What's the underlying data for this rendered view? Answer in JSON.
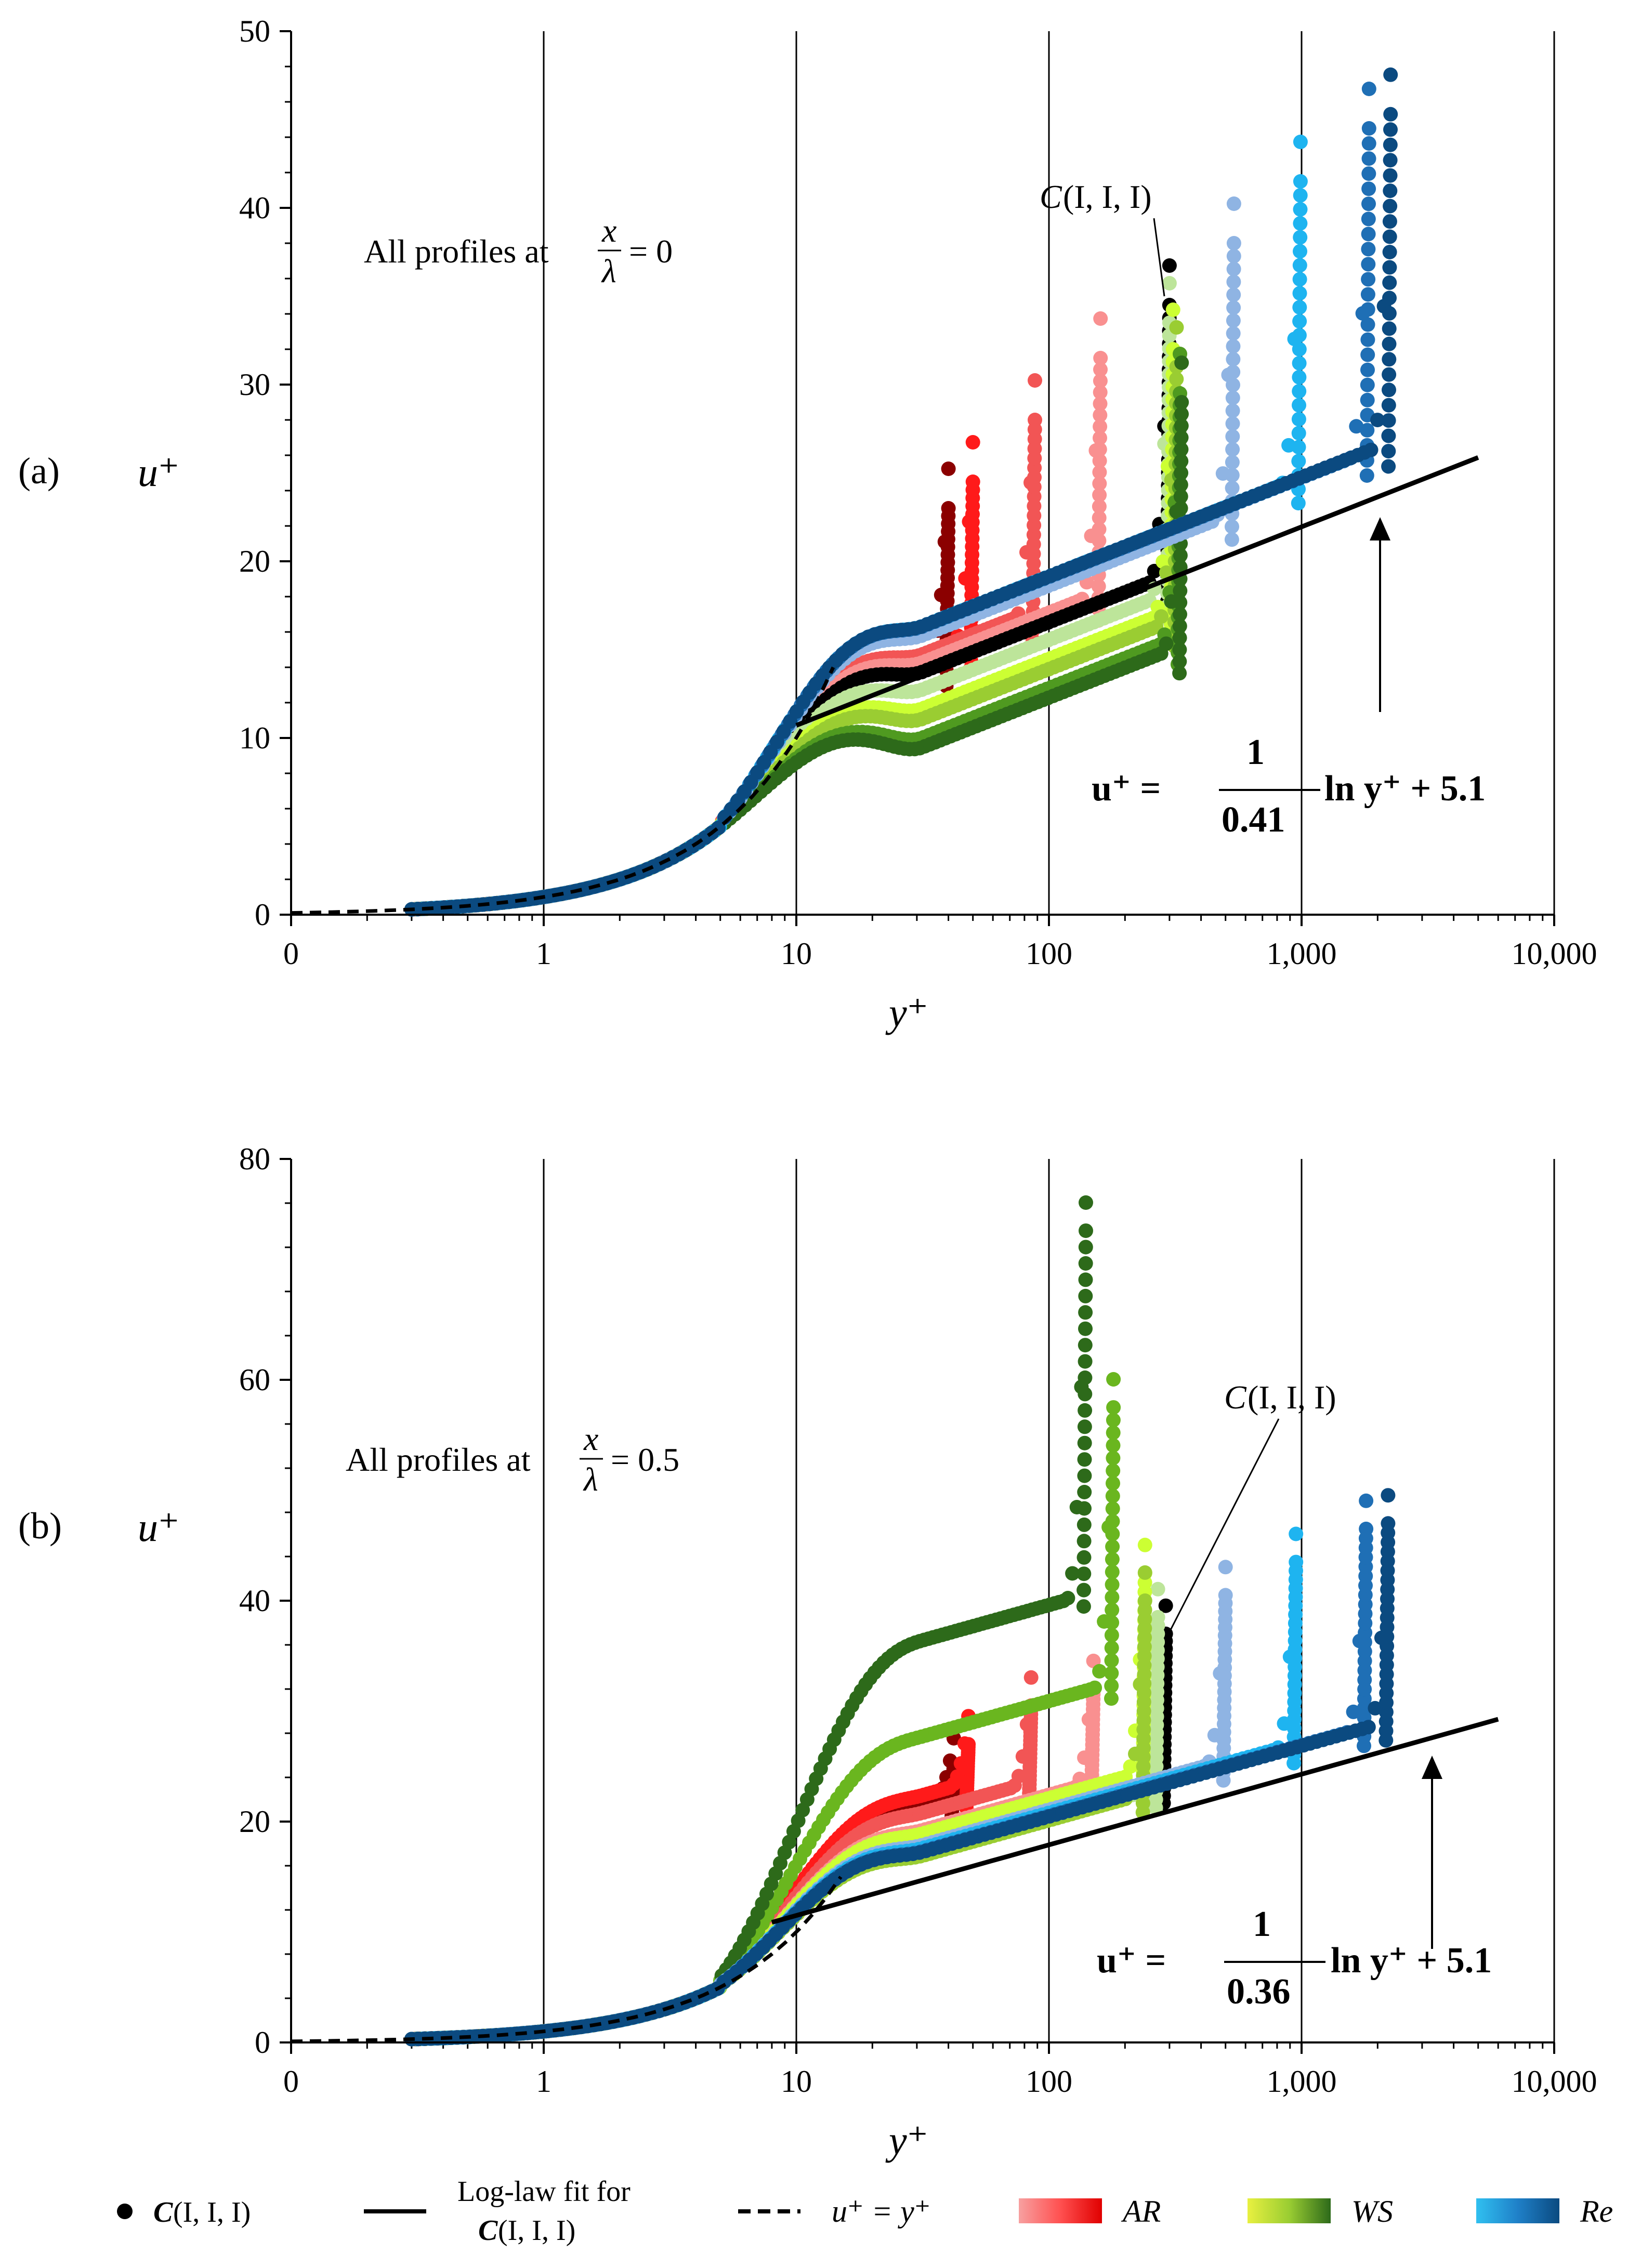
{
  "chart_data": [
    {
      "panel_label": "(a)",
      "type": "scatter",
      "x_scale": "log",
      "xlabel": "y⁺",
      "ylabel": "u⁺",
      "xlim": [
        0.1,
        10000
      ],
      "ylim": [
        0,
        50
      ],
      "x_tick_values": [
        0.1,
        1,
        10,
        100,
        1000,
        10000
      ],
      "x_tick_labels": [
        "0",
        "1",
        "10",
        "100",
        "1,000",
        "10,000"
      ],
      "y_tick_values": [
        0,
        10,
        20,
        30,
        40,
        50
      ],
      "y_tick_labels": [
        "0",
        "10",
        "20",
        "30",
        "40",
        "50"
      ],
      "annotation": "All profiles at",
      "annotation_fraction": {
        "num": "x",
        "den": "λ"
      },
      "annotation_value": "= 0",
      "case_label_fn": "C",
      "case_label_args": "(I, I, I)",
      "equation": {
        "lhs": "u⁺ = ",
        "num": "1",
        "den": "0.41",
        "rhs": "ln y⁺ + 5.1"
      },
      "log_law": {
        "kappa": 0.41,
        "B": 5.1,
        "x_range": [
          10,
          5000
        ]
      },
      "viscous_law": {
        "x_range": [
          0.1,
          14
        ]
      },
      "series": [
        {
          "group": "AR",
          "color": "#8b0000",
          "delta_plus": 40,
          "plateau": 12.5,
          "peak": 23
        },
        {
          "group": "AR",
          "color": "#ff1a1a",
          "delta_plus": 50,
          "plateau": 13.5,
          "peak": 24.5
        },
        {
          "group": "AR",
          "color": "#f25555",
          "delta_plus": 88,
          "plateau": 15,
          "peak": 28
        },
        {
          "group": "AR",
          "color": "#f99090",
          "delta_plus": 160,
          "plateau": 16,
          "peak": 31.5
        },
        {
          "group": "C(I, I, I)",
          "color": "#000000",
          "delta_plus": 300,
          "plateau": 17,
          "peak": 34.5
        },
        {
          "group": "WS",
          "color": "#bde59a",
          "delta_plus": 300,
          "plateau": 16,
          "peak": 33.5
        },
        {
          "group": "WS",
          "color": "#ccff33",
          "delta_plus": 310,
          "plateau": 15,
          "peak": 32
        },
        {
          "group": "WS",
          "color": "#9acd32",
          "delta_plus": 320,
          "plateau": 14.5,
          "peak": 31
        },
        {
          "group": "WS",
          "color": "#4f9a20",
          "delta_plus": 330,
          "plateau": 13.5,
          "peak": 29.5
        },
        {
          "group": "WS",
          "color": "#2d6a1a",
          "delta_plus": 335,
          "plateau": 13,
          "peak": 29
        },
        {
          "group": "Re",
          "color": "#8fb4e3",
          "delta_plus": 540,
          "plateau": 20.5,
          "peak": 38
        },
        {
          "group": "Re",
          "color": "#1eb4f0",
          "delta_plus": 990,
          "plateau": 22.5,
          "peak": 41.5
        },
        {
          "group": "Re",
          "color": "#1f6fb5",
          "delta_plus": 1850,
          "plateau": 24,
          "peak": 44.5
        },
        {
          "group": "Re",
          "color": "#0b4a80",
          "delta_plus": 2250,
          "plateau": 24.5,
          "peak": 45.3
        }
      ]
    },
    {
      "panel_label": "(b)",
      "type": "scatter",
      "x_scale": "log",
      "xlabel": "y⁺",
      "ylabel": "u⁺",
      "xlim": [
        0.1,
        10000
      ],
      "ylim": [
        0,
        80
      ],
      "x_tick_values": [
        0.1,
        1,
        10,
        100,
        1000,
        10000
      ],
      "x_tick_labels": [
        "0",
        "1",
        "10",
        "100",
        "1,000",
        "10,000"
      ],
      "y_tick_values": [
        0,
        20,
        40,
        60,
        80
      ],
      "y_tick_labels": [
        "0",
        "20",
        "40",
        "60",
        "80"
      ],
      "annotation": "All profiles at",
      "annotation_fraction": {
        "num": "x",
        "den": "λ"
      },
      "annotation_value": "= 0.5",
      "case_label_fn": "C",
      "case_label_args": "(I, I, I)",
      "equation": {
        "lhs": "u⁺ = ",
        "num": "1",
        "den": "0.36",
        "rhs": "ln y⁺ + 5.1"
      },
      "log_law": {
        "kappa": 0.36,
        "B": 5.1,
        "x_range": [
          8,
          6000
        ]
      },
      "viscous_law": {
        "x_range": [
          0.1,
          15
        ]
      },
      "series": [
        {
          "group": "AR",
          "color": "#8b0000",
          "delta_plus": 42,
          "plateau": 20,
          "peak": 25
        },
        {
          "group": "AR",
          "color": "#ff1a1a",
          "delta_plus": 48,
          "plateau": 21,
          "peak": 27
        },
        {
          "group": "AR",
          "color": "#f25555",
          "delta_plus": 85,
          "plateau": 21,
          "peak": 30.5
        },
        {
          "group": "AR",
          "color": "#f99090",
          "delta_plus": 150,
          "plateau": 21,
          "peak": 32
        },
        {
          "group": "C(I, I, I)",
          "color": "#000000",
          "delta_plus": 290,
          "plateau": 21,
          "peak": 37
        },
        {
          "group": "WS",
          "color": "#bde59a",
          "delta_plus": 270,
          "plateau": 20.5,
          "peak": 38.5
        },
        {
          "group": "WS",
          "color": "#ccff33",
          "delta_plus": 240,
          "plateau": 22,
          "peak": 42.5
        },
        {
          "group": "WS",
          "color": "#9acd32",
          "delta_plus": 240,
          "plateau": 20,
          "peak": 40
        },
        {
          "group": "WS",
          "color": "#6ab61f",
          "delta_plus": 180,
          "plateau": 30,
          "peak": 57.5
        },
        {
          "group": "WS",
          "color": "#2d6a1a",
          "delta_plus": 140,
          "plateau": 38,
          "peak": 73.5
        },
        {
          "group": "Re",
          "color": "#8fb4e3",
          "delta_plus": 500,
          "plateau": 23,
          "peak": 40.5
        },
        {
          "group": "Re",
          "color": "#1eb4f0",
          "delta_plus": 950,
          "plateau": 24.5,
          "peak": 43.5
        },
        {
          "group": "Re",
          "color": "#1f6fb5",
          "delta_plus": 1800,
          "plateau": 26,
          "peak": 46.5
        },
        {
          "group": "Re",
          "color": "#0b4a80",
          "delta_plus": 2200,
          "plateau": 26.5,
          "peak": 47
        }
      ]
    }
  ],
  "legend": {
    "marker_label_fn": "C",
    "marker_label_args": "(I, I, I)",
    "loglaw_label_line1": "Log-law fit for",
    "loglaw_label_fn": "C",
    "loglaw_label_args": "(I, I, I)",
    "viscous_label": "u⁺ = y⁺",
    "groups": [
      {
        "name": "AR",
        "colors": [
          "#f7a0a0",
          "#ff5050",
          "#e00000"
        ]
      },
      {
        "name": "WS",
        "colors": [
          "#e8f040",
          "#9acd32",
          "#2d6a1a"
        ]
      },
      {
        "name": "Re",
        "colors": [
          "#30c0f0",
          "#1f80c8",
          "#0b4a80"
        ]
      }
    ]
  }
}
